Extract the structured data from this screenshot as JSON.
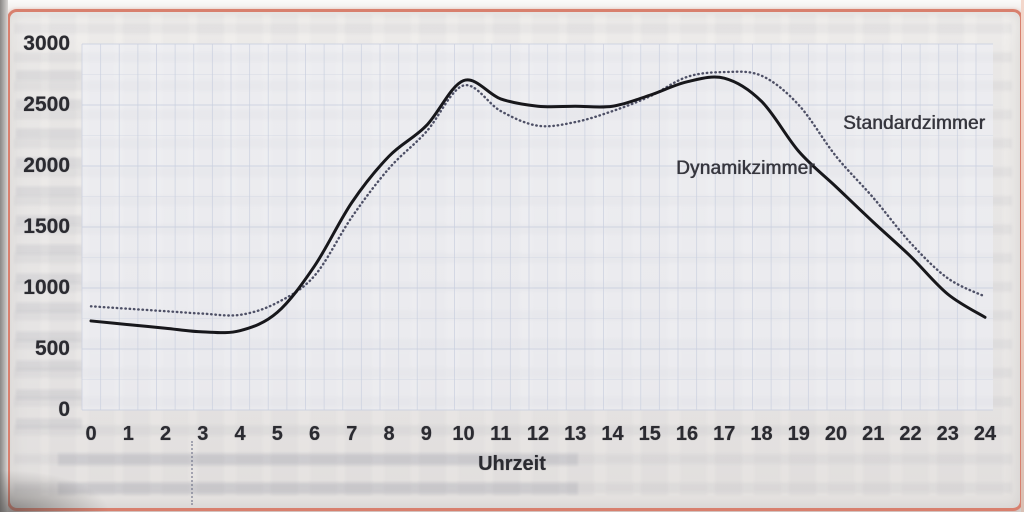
{
  "figure": {
    "kind": "scanned-book-figure",
    "frame_color": "#d8806e",
    "page_background": "#e9e7e5",
    "grid_color": "#c9cfdf"
  },
  "chart_data": {
    "type": "line",
    "title": "",
    "xlabel": "Uhrzeit",
    "ylabel": "",
    "xlim": [
      0,
      24
    ],
    "ylim": [
      0,
      3000
    ],
    "grid": true,
    "legend_position": "inline-labels",
    "x": [
      0,
      1,
      2,
      3,
      4,
      5,
      6,
      7,
      8,
      9,
      10,
      11,
      12,
      13,
      14,
      15,
      16,
      17,
      18,
      19,
      20,
      21,
      22,
      23,
      24
    ],
    "x_ticks": [
      0,
      1,
      2,
      3,
      4,
      5,
      6,
      7,
      8,
      9,
      10,
      11,
      12,
      13,
      14,
      15,
      16,
      17,
      18,
      19,
      20,
      21,
      22,
      23,
      24
    ],
    "y_ticks": [
      3000,
      2500,
      2000,
      1500,
      1000,
      500,
      0
    ],
    "series": [
      {
        "name": "Standardzimmer",
        "line_style": "dotted",
        "color": "#4e5066",
        "values": [
          850,
          830,
          810,
          790,
          780,
          880,
          1100,
          1580,
          1980,
          2280,
          2660,
          2450,
          2330,
          2360,
          2450,
          2570,
          2730,
          2770,
          2740,
          2500,
          2080,
          1740,
          1370,
          1080,
          930
        ]
      },
      {
        "name": "Dynamikzimmer",
        "line_style": "solid",
        "color": "#17171b",
        "values": [
          730,
          700,
          670,
          640,
          650,
          800,
          1180,
          1700,
          2080,
          2330,
          2700,
          2550,
          2490,
          2490,
          2490,
          2580,
          2690,
          2720,
          2530,
          2120,
          1830,
          1540,
          1260,
          950,
          760
        ]
      }
    ]
  }
}
